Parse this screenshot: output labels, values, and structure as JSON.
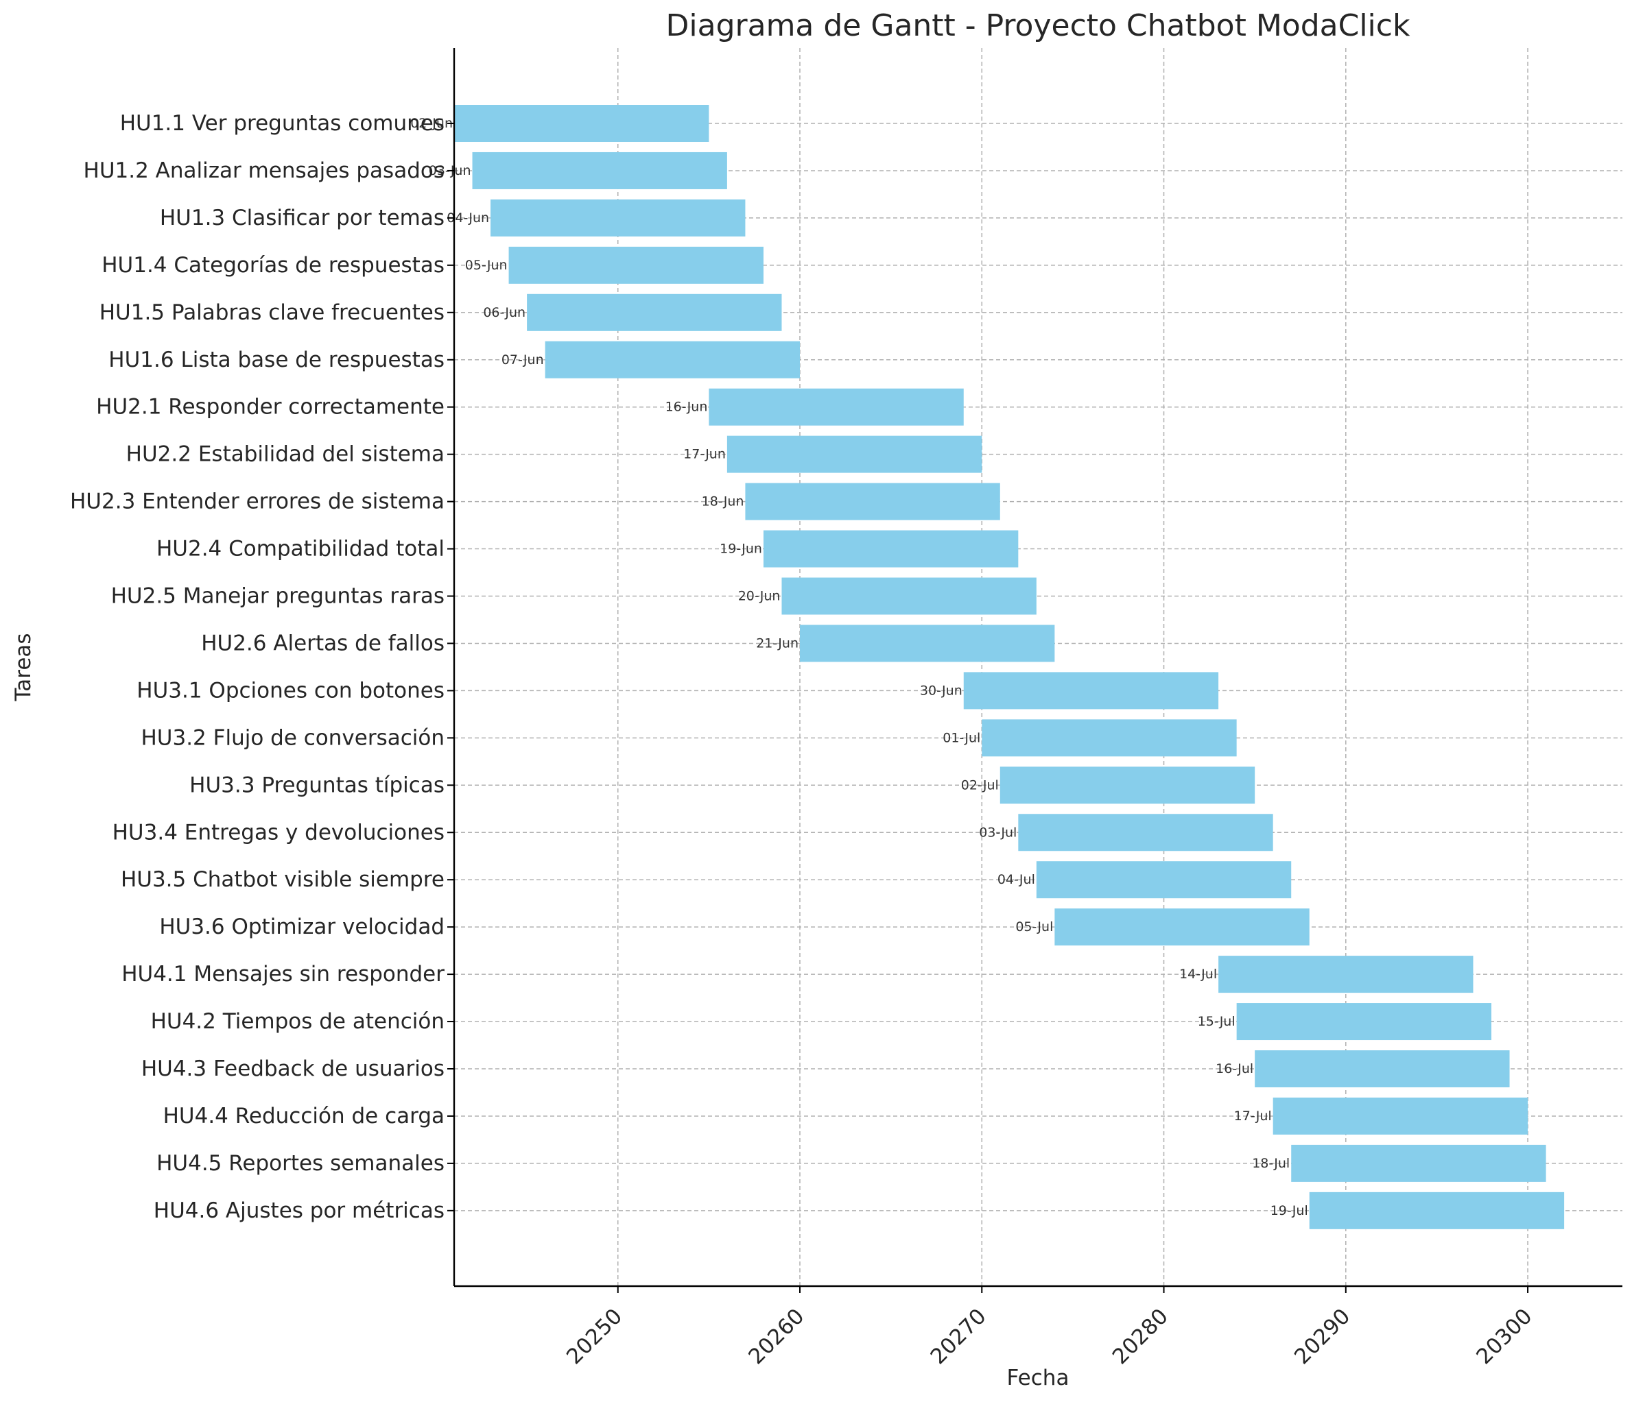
{
  "chart_data": {
    "type": "bar",
    "orientation": "horizontal",
    "title": "Diagrama de Gantt - Proyecto Chatbot ModaClick",
    "xlabel": "Fecha",
    "ylabel": "Tareas",
    "xlim": [
      20241,
      20305.2
    ],
    "xticks": [
      20250,
      20260,
      20270,
      20280,
      20290,
      20300
    ],
    "xtick_labels": [
      "20250",
      "20260",
      "20270",
      "20280",
      "20290",
      "20300"
    ],
    "grid": true,
    "bar_color": "#87CEEB",
    "tasks": [
      {
        "label": "HU1.1 Ver preguntas comunes",
        "start": 20241,
        "duration": 14,
        "start_label": "02-Jun"
      },
      {
        "label": "HU1.2 Analizar mensajes pasados",
        "start": 20242,
        "duration": 14,
        "start_label": "03-Jun"
      },
      {
        "label": "HU1.3 Clasificar por temas",
        "start": 20243,
        "duration": 14,
        "start_label": "04-Jun"
      },
      {
        "label": "HU1.4 Categorías de respuestas",
        "start": 20244,
        "duration": 14,
        "start_label": "05-Jun"
      },
      {
        "label": "HU1.5 Palabras clave frecuentes",
        "start": 20245,
        "duration": 14,
        "start_label": "06-Jun"
      },
      {
        "label": "HU1.6 Lista base de respuestas",
        "start": 20246,
        "duration": 14,
        "start_label": "07-Jun"
      },
      {
        "label": "HU2.1 Responder correctamente",
        "start": 20255,
        "duration": 14,
        "start_label": "16-Jun"
      },
      {
        "label": "HU2.2 Estabilidad del sistema",
        "start": 20256,
        "duration": 14,
        "start_label": "17-Jun"
      },
      {
        "label": "HU2.3 Entender errores de sistema",
        "start": 20257,
        "duration": 14,
        "start_label": "18-Jun"
      },
      {
        "label": "HU2.4 Compatibilidad total",
        "start": 20258,
        "duration": 14,
        "start_label": "19-Jun"
      },
      {
        "label": "HU2.5 Manejar preguntas raras",
        "start": 20259,
        "duration": 14,
        "start_label": "20-Jun"
      },
      {
        "label": "HU2.6 Alertas de fallos",
        "start": 20260,
        "duration": 14,
        "start_label": "21-Jun"
      },
      {
        "label": "HU3.1 Opciones con botones",
        "start": 20269,
        "duration": 14,
        "start_label": "30-Jun"
      },
      {
        "label": "HU3.2 Flujo de conversación",
        "start": 20270,
        "duration": 14,
        "start_label": "01-Jul"
      },
      {
        "label": "HU3.3 Preguntas típicas",
        "start": 20271,
        "duration": 14,
        "start_label": "02-Jul"
      },
      {
        "label": "HU3.4 Entregas y devoluciones",
        "start": 20272,
        "duration": 14,
        "start_label": "03-Jul"
      },
      {
        "label": "HU3.5 Chatbot visible siempre",
        "start": 20273,
        "duration": 14,
        "start_label": "04-Jul"
      },
      {
        "label": "HU3.6 Optimizar velocidad",
        "start": 20274,
        "duration": 14,
        "start_label": "05-Jul"
      },
      {
        "label": "HU4.1 Mensajes sin responder",
        "start": 20283,
        "duration": 14,
        "start_label": "14-Jul"
      },
      {
        "label": "HU4.2 Tiempos de atención",
        "start": 20284,
        "duration": 14,
        "start_label": "15-Jul"
      },
      {
        "label": "HU4.3 Feedback de usuarios",
        "start": 20285,
        "duration": 14,
        "start_label": "16-Jul"
      },
      {
        "label": "HU4.4 Reducción de carga",
        "start": 20286,
        "duration": 14,
        "start_label": "17-Jul"
      },
      {
        "label": "HU4.5 Reportes semanales",
        "start": 20287,
        "duration": 14,
        "start_label": "18-Jul"
      },
      {
        "label": "HU4.6 Ajustes por métricas",
        "start": 20288,
        "duration": 14,
        "start_label": "19-Jul"
      }
    ]
  }
}
